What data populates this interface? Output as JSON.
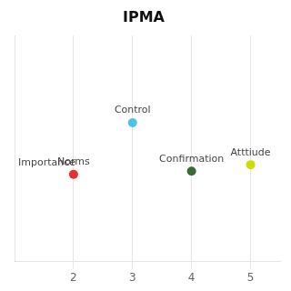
{
  "chart_data": {
    "type": "scatter",
    "title": "IPMA",
    "points": [
      {
        "label": "Control",
        "x": 3.0,
        "y": 0.68,
        "color": "#4DC3E8"
      },
      {
        "label": "Norms",
        "x": 2.0,
        "y": 0.52,
        "color": "#E83030"
      },
      {
        "label": "Confirmation",
        "x": 4.0,
        "y": 0.53,
        "color": "#3A6B35"
      },
      {
        "label": "Atttiude",
        "x": 5.0,
        "y": 0.55,
        "color": "#CCDD00"
      }
    ],
    "annotations": [
      {
        "text": "Importance",
        "x": 1.0,
        "y": 0.555
      }
    ],
    "xlim": [
      1.0,
      5.5
    ],
    "ylim": [
      0.25,
      0.95
    ],
    "xticks": [
      2,
      3,
      4,
      5
    ],
    "yticks": [],
    "grid": true,
    "tick_labels": "x"
  }
}
